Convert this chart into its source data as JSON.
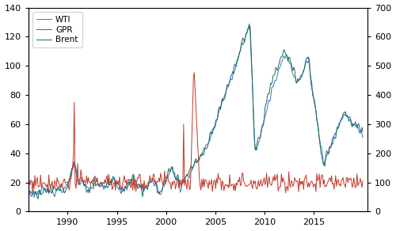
{
  "left_ylim": [
    0,
    140
  ],
  "right_ylim": [
    0,
    700
  ],
  "left_yticks": [
    0,
    20,
    40,
    60,
    80,
    100,
    120,
    140
  ],
  "right_yticks": [
    0,
    100,
    200,
    300,
    400,
    500,
    600,
    700
  ],
  "xticks": [
    1990,
    1995,
    2000,
    2005,
    2010,
    2015
  ],
  "xlim": [
    1986.0,
    2020.5
  ],
  "wti_color": "#4472C4",
  "gpr_color": "#C0392B",
  "brent_color": "#1A6B5A",
  "legend_labels": [
    "WTI",
    "GPR",
    "Brent"
  ],
  "linewidth": 0.7
}
